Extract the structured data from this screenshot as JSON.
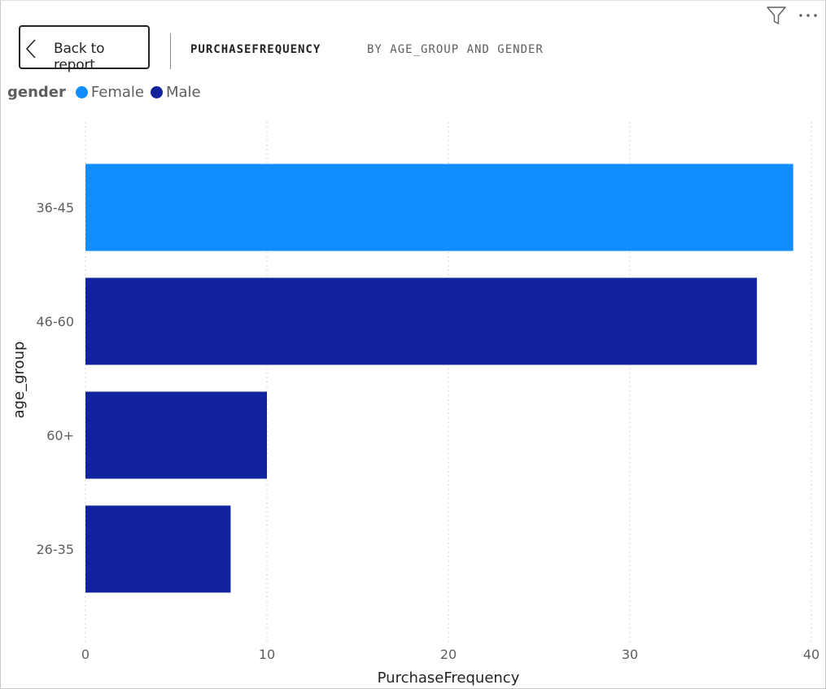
{
  "header": {
    "back_label": "Back to report",
    "title_measure": "PURCHASEFREQUENCY",
    "title_by": "BY AGE_GROUP AND GENDER"
  },
  "legend": {
    "title": "gender",
    "items": [
      {
        "label": "Female",
        "color": "#118dff"
      },
      {
        "label": "Male",
        "color": "#12239e"
      }
    ]
  },
  "icons": {
    "filter": "filter-icon",
    "more": "more-options-icon",
    "back": "chevron-left-icon"
  },
  "chart_data": {
    "type": "bar",
    "orientation": "horizontal",
    "categories": [
      "36-45",
      "46-60",
      "60+",
      "26-35"
    ],
    "values": [
      39,
      37,
      10,
      8
    ],
    "series_by_category": [
      "Female",
      "Male",
      "Male",
      "Male"
    ],
    "series": [
      {
        "name": "Female",
        "color": "#118dff"
      },
      {
        "name": "Male",
        "color": "#12239e"
      }
    ],
    "xlabel": "PurchaseFrequency",
    "ylabel": "age_group",
    "xlim": [
      0,
      40
    ],
    "xticks": [
      0,
      10,
      20,
      30,
      40
    ],
    "grid": true,
    "legend_position": "top-left"
  }
}
